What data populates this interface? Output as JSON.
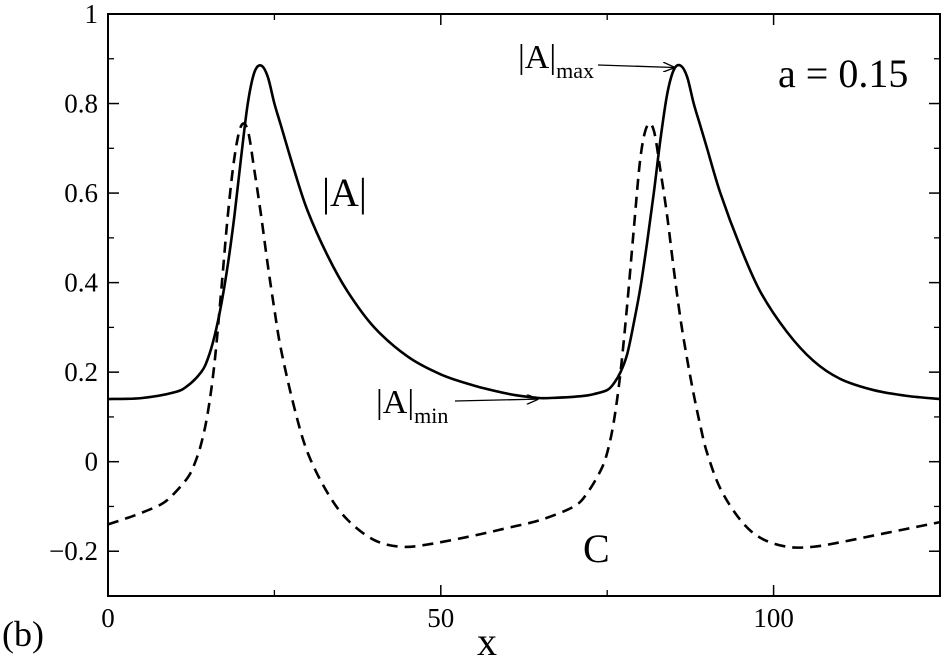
{
  "chart_data": {
    "type": "line",
    "title": "",
    "xlabel": "x",
    "ylabel": "",
    "panel_label": "(b)",
    "xlim": [
      0,
      125
    ],
    "ylim": [
      -0.3,
      1.0
    ],
    "grid": false,
    "xticks": [
      0,
      50,
      100
    ],
    "xtick_labels": [
      "0",
      "50",
      "100"
    ],
    "yticks": [
      -0.2,
      0,
      0.2,
      0.4,
      0.6,
      0.8,
      1
    ],
    "ytick_labels": [
      "−0.2",
      "0",
      "0.2",
      "0.4",
      "0.6",
      "0.8",
      "1"
    ],
    "parameter_label": "a = 0.15",
    "series": [
      {
        "name": "|A|",
        "style": "solid",
        "color": "#000000",
        "x": [
          0,
          5,
          10,
          12,
          14,
          15,
          16,
          17,
          18,
          19,
          20,
          21,
          22,
          23,
          24,
          25,
          26,
          28,
          30,
          33,
          36,
          40,
          45,
          50,
          55,
          60,
          62.5,
          65,
          67.5,
          70,
          72,
          73,
          75,
          76,
          77,
          78,
          79,
          80,
          81,
          82,
          83,
          84,
          85,
          86,
          87,
          88,
          89,
          90,
          92,
          95,
          98,
          102,
          106,
          110,
          115,
          120,
          125
        ],
        "y": [
          0.14,
          0.142,
          0.155,
          0.17,
          0.2,
          0.23,
          0.28,
          0.35,
          0.44,
          0.55,
          0.68,
          0.8,
          0.87,
          0.885,
          0.86,
          0.8,
          0.75,
          0.65,
          0.56,
          0.46,
          0.38,
          0.3,
          0.235,
          0.195,
          0.17,
          0.152,
          0.146,
          0.142,
          0.143,
          0.145,
          0.148,
          0.151,
          0.16,
          0.175,
          0.2,
          0.24,
          0.31,
          0.39,
          0.49,
          0.6,
          0.72,
          0.82,
          0.875,
          0.885,
          0.86,
          0.8,
          0.75,
          0.7,
          0.6,
          0.48,
          0.38,
          0.29,
          0.225,
          0.185,
          0.16,
          0.147,
          0.14
        ]
      },
      {
        "name": "C",
        "style": "dashed",
        "color": "#000000",
        "x": [
          0,
          4,
          8,
          10,
          12,
          13,
          14,
          15,
          16,
          17,
          18,
          19,
          20,
          21,
          22,
          23,
          24,
          25,
          26,
          28,
          30,
          33,
          36,
          40,
          44,
          48,
          55,
          60,
          65,
          70,
          72,
          74,
          75,
          76,
          77,
          78,
          79,
          80,
          81,
          82,
          83,
          84,
          85,
          86,
          87,
          88,
          89,
          90,
          92,
          95,
          98,
          102,
          106,
          110,
          115,
          120,
          125
        ],
        "y": [
          -0.14,
          -0.12,
          -0.095,
          -0.07,
          -0.035,
          -0.005,
          0.04,
          0.11,
          0.22,
          0.38,
          0.55,
          0.68,
          0.75,
          0.74,
          0.65,
          0.55,
          0.44,
          0.34,
          0.25,
          0.12,
          0.02,
          -0.07,
          -0.13,
          -0.175,
          -0.19,
          -0.185,
          -0.165,
          -0.148,
          -0.13,
          -0.1,
          -0.07,
          -0.02,
          0.02,
          0.09,
          0.2,
          0.35,
          0.52,
          0.68,
          0.75,
          0.74,
          0.65,
          0.55,
          0.43,
          0.32,
          0.23,
          0.15,
          0.08,
          0.02,
          -0.06,
          -0.13,
          -0.17,
          -0.19,
          -0.19,
          -0.18,
          -0.165,
          -0.15,
          -0.135
        ]
      }
    ],
    "annotations": {
      "curve_label_A": "|A|",
      "curve_label_C": "C",
      "max_label": "|A|",
      "max_sub": "max",
      "min_label": "|A|",
      "min_sub": "min",
      "max_arrow_target": {
        "x": 85.5,
        "y": 0.885
      },
      "min_arrow_target": {
        "x": 65,
        "y": 0.142
      }
    }
  }
}
